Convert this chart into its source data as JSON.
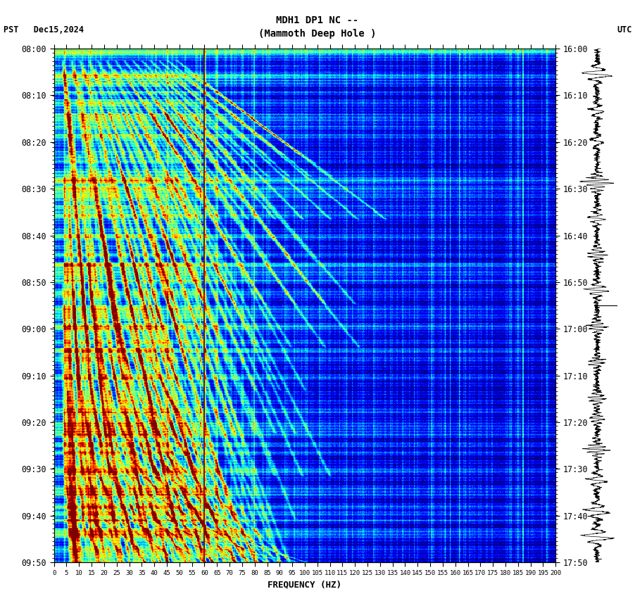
{
  "title_line1": "MDH1 DP1 NC --",
  "title_line2": "(Mammoth Deep Hole )",
  "left_label": "PST   Dec15,2024",
  "right_label": "UTC",
  "xlabel": "FREQUENCY (HZ)",
  "freq_ticks": [
    0,
    5,
    10,
    15,
    20,
    25,
    30,
    35,
    40,
    45,
    50,
    55,
    60,
    65,
    70,
    75,
    80,
    85,
    90,
    95,
    100,
    105,
    110,
    115,
    120,
    125,
    130,
    135,
    140,
    145,
    150,
    155,
    160,
    165,
    170,
    175,
    180,
    185,
    190,
    195,
    200
  ],
  "freq_min": 0,
  "freq_max": 200,
  "pst_ticks": [
    "08:00",
    "08:10",
    "08:20",
    "08:30",
    "08:40",
    "08:50",
    "09:00",
    "09:10",
    "09:20",
    "09:30",
    "09:40",
    "09:50"
  ],
  "utc_ticks": [
    "16:00",
    "16:10",
    "16:20",
    "16:30",
    "16:40",
    "16:50",
    "17:00",
    "17:10",
    "17:20",
    "17:30",
    "17:40",
    "17:50"
  ],
  "vertical_line_freq": 60,
  "colormap": "jet",
  "fig_width": 9.02,
  "fig_height": 8.64,
  "dpi": 100
}
